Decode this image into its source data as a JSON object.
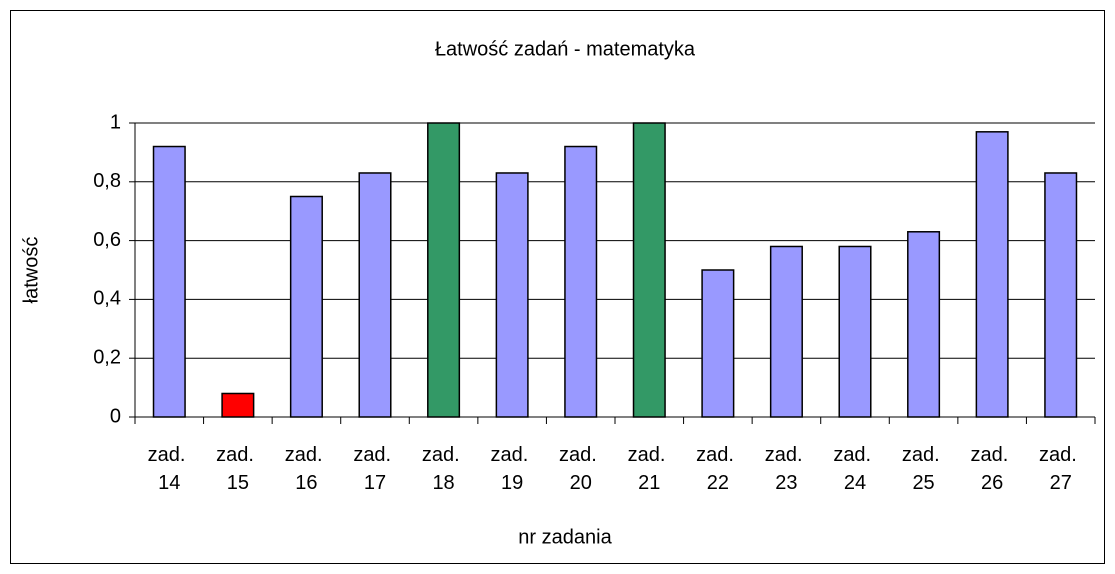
{
  "chart_data": {
    "type": "bar",
    "title": "Łatwość zadań - matematyka",
    "x_label": "nr zadania",
    "y_label": "łatwość",
    "categories": [
      "zad. 14",
      "zad. 15",
      "zad. 16",
      "zad. 17",
      "zad. 18",
      "zad. 19",
      "zad. 20",
      "zad. 21",
      "zad. 22",
      "zad. 23",
      "zad. 24",
      "zad. 25",
      "zad. 26",
      "zad. 27"
    ],
    "values": [
      0.92,
      0.08,
      0.75,
      0.83,
      1,
      0.83,
      0.92,
      1,
      0.5,
      0.58,
      0.58,
      0.63,
      0.97,
      0.83
    ],
    "colors": [
      "#9999ff",
      "#ff0000",
      "#9999ff",
      "#9999ff",
      "#339966",
      "#9999ff",
      "#9999ff",
      "#339966",
      "#9999ff",
      "#9999ff",
      "#9999ff",
      "#9999ff",
      "#9999ff",
      "#9999ff"
    ],
    "ylim": [
      0,
      1
    ],
    "yticks": [
      0,
      {
        "value": 0.2,
        "label": "0,2"
      },
      {
        "value": 0.4,
        "label": "0,4"
      },
      {
        "value": 0.6,
        "label": "0,6"
      },
      {
        "value": 0.8,
        "label": "0,8"
      },
      1
    ],
    "grid": true
  }
}
